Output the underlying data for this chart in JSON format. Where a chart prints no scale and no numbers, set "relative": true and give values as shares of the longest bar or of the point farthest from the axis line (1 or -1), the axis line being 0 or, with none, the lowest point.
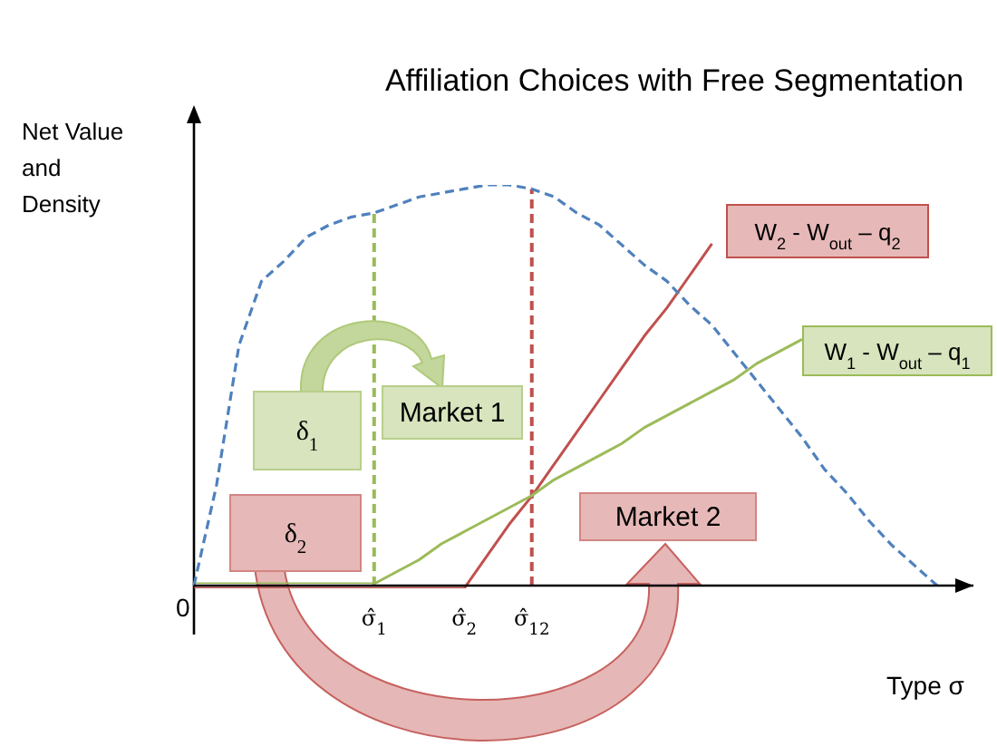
{
  "chart_data": {
    "type": "line",
    "title": "Affiliation Choices with Free Segmentation",
    "ylabel": "Net Value and Density",
    "xlabel": "Type σ",
    "relative": true,
    "marker": "none",
    "categories": [
      null,
      null,
      null,
      null,
      null,
      null,
      null,
      null,
      "σ̂$_{1}$",
      null,
      null,
      null,
      "σ̂$_{2}$",
      null,
      null,
      "σ̂$_{12}$",
      null,
      null,
      null,
      null,
      null,
      null,
      null,
      null,
      null,
      null,
      null,
      null,
      null,
      null,
      null,
      null,
      null,
      null
    ],
    "series": [
      {
        "name": "W$_{2}$ - W$_{out}$ – q$_{2}$",
        "color": "#c0504d",
        "values": [
          0,
          0,
          0,
          0,
          0,
          0,
          0,
          0,
          0,
          0,
          0,
          0,
          0,
          0.08,
          0.16,
          0.23,
          0.31,
          0.39,
          0.47,
          0.55,
          0.63,
          0.7,
          0.78,
          0.86,
          null,
          null,
          null,
          null,
          null,
          null,
          null,
          null,
          null,
          null
        ]
      },
      {
        "name": "W$_{1}$ - W$_{out}$ – q$_{1}$",
        "color": "#9bbb59",
        "values": [
          0,
          0,
          0,
          0,
          0,
          0,
          0,
          0,
          0,
          0.03,
          0.06,
          0.1,
          0.13,
          0.16,
          0.19,
          0.22,
          0.26,
          0.29,
          0.32,
          0.35,
          0.39,
          0.42,
          0.45,
          0.48,
          0.51,
          0.55,
          0.58,
          0.61,
          null,
          null,
          null,
          null,
          null,
          null
        ]
      },
      {
        "color": "#4f81bd",
        "line_style": "dashed",
        "values": [
          0,
          0.25,
          0.6,
          0.76,
          0.81,
          0.87,
          0.9,
          0.92,
          0.93,
          0.95,
          0.97,
          0.98,
          0.99,
          1,
          1,
          0.99,
          0.97,
          0.93,
          0.9,
          0.85,
          0.8,
          0.76,
          0.7,
          0.65,
          0.58,
          0.51,
          0.44,
          0.37,
          0.29,
          0.23,
          0.16,
          0.1,
          0.05,
          0
        ]
      }
    ],
    "ref_lines": [
      {
        "axis": "x",
        "value": "σ̂$_{1}$",
        "color": "#9bbb59",
        "line_style": "dashed"
      },
      {
        "axis": "x",
        "value": "σ̂$_{12}$",
        "color": "#c0504d",
        "line_style": "dashed"
      }
    ],
    "annotations": [
      "δ$_{1}$",
      "Market 1",
      "δ$_{2}$",
      "Market 2",
      "0"
    ]
  }
}
